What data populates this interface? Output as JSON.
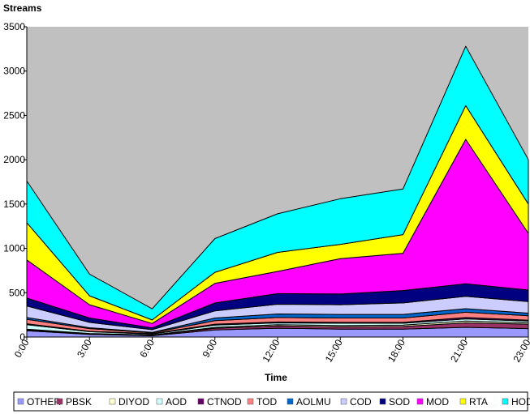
{
  "chart_data": {
    "type": "area",
    "stacked": true,
    "title": "",
    "ylabel": "Streams",
    "xlabel": "Time",
    "ylim": [
      0,
      3500
    ],
    "yticks": [
      0,
      500,
      1000,
      1500,
      2000,
      2500,
      3000,
      3500
    ],
    "categories": [
      "0:00",
      "3:00",
      "6:00",
      "9:00",
      "12:00",
      "15:00",
      "18:00",
      "21:00",
      "23:00"
    ],
    "grid": false,
    "plot_background": "#c0c0c0",
    "legend_position": "bottom",
    "series": [
      {
        "name": "OTHER",
        "color": "#9999ff",
        "values": [
          70,
          30,
          15,
          80,
          100,
          90,
          90,
          110,
          95
        ]
      },
      {
        "name": "PBSK",
        "color": "#993366",
        "values": [
          10,
          5,
          5,
          20,
          25,
          25,
          30,
          50,
          50
        ]
      },
      {
        "name": "DIYOD",
        "color": "#ffffcc",
        "values": [
          10,
          5,
          3,
          10,
          15,
          15,
          15,
          20,
          15
        ]
      },
      {
        "name": "AOD",
        "color": "#ccffff",
        "values": [
          50,
          20,
          10,
          25,
          20,
          25,
          20,
          25,
          20
        ]
      },
      {
        "name": "CTNOD",
        "color": "#660066",
        "values": [
          10,
          5,
          5,
          10,
          10,
          10,
          10,
          15,
          10
        ]
      },
      {
        "name": "TOD",
        "color": "#ff8080",
        "values": [
          50,
          30,
          10,
          40,
          50,
          50,
          50,
          60,
          50
        ]
      },
      {
        "name": "AOLMU",
        "color": "#0066cc",
        "values": [
          20,
          10,
          5,
          30,
          40,
          40,
          40,
          40,
          30
        ]
      },
      {
        "name": "COD",
        "color": "#ccccff",
        "values": [
          130,
          60,
          30,
          80,
          110,
          110,
          130,
          140,
          130
        ]
      },
      {
        "name": "SOD",
        "color": "#000080",
        "values": [
          90,
          50,
          20,
          90,
          120,
          120,
          140,
          140,
          130
        ]
      },
      {
        "name": "MOD",
        "color": "#ff00ff",
        "values": [
          430,
          150,
          50,
          220,
          250,
          400,
          420,
          1630,
          640
        ]
      },
      {
        "name": "RTA",
        "color": "#ffff00",
        "values": [
          420,
          100,
          40,
          125,
          215,
          160,
          210,
          380,
          330
        ]
      },
      {
        "name": "HOD",
        "color": "#00ffff",
        "values": [
          470,
          245,
          125,
          380,
          435,
          515,
          515,
          670,
          500
        ]
      }
    ],
    "legend_order": [
      "OTHER",
      "PBSK",
      "DIYOD",
      "AOD",
      "CTNOD",
      "TOD",
      "AOLMU",
      "COD",
      "SOD",
      "MOD",
      "RTA",
      "HOD"
    ]
  }
}
